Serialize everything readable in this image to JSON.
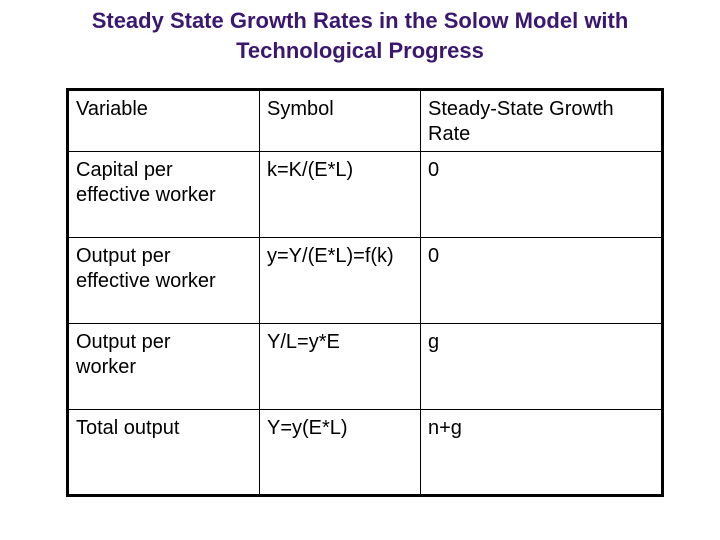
{
  "title": [
    "Steady State Growth Rates in the Solow Model with",
    "Technological Progress"
  ],
  "table": {
    "header": [
      [
        "Variable"
      ],
      [
        "Symbol"
      ],
      [
        "Steady-State Growth",
        "Rate"
      ]
    ],
    "rows": [
      [
        [
          "Capital per",
          "effective worker"
        ],
        [
          "k=K/(E*L)"
        ],
        [
          "0"
        ]
      ],
      [
        [
          "Output per",
          "effective worker"
        ],
        [
          "y=Y/(E*L)=f(k)"
        ],
        [
          "0"
        ]
      ],
      [
        [
          "Output per",
          "worker"
        ],
        [
          "Y/L=y*E"
        ],
        [
          "g"
        ]
      ],
      [
        [
          "Total output"
        ],
        [
          "Y=y(E*L)"
        ],
        [
          "n+g"
        ]
      ]
    ]
  }
}
